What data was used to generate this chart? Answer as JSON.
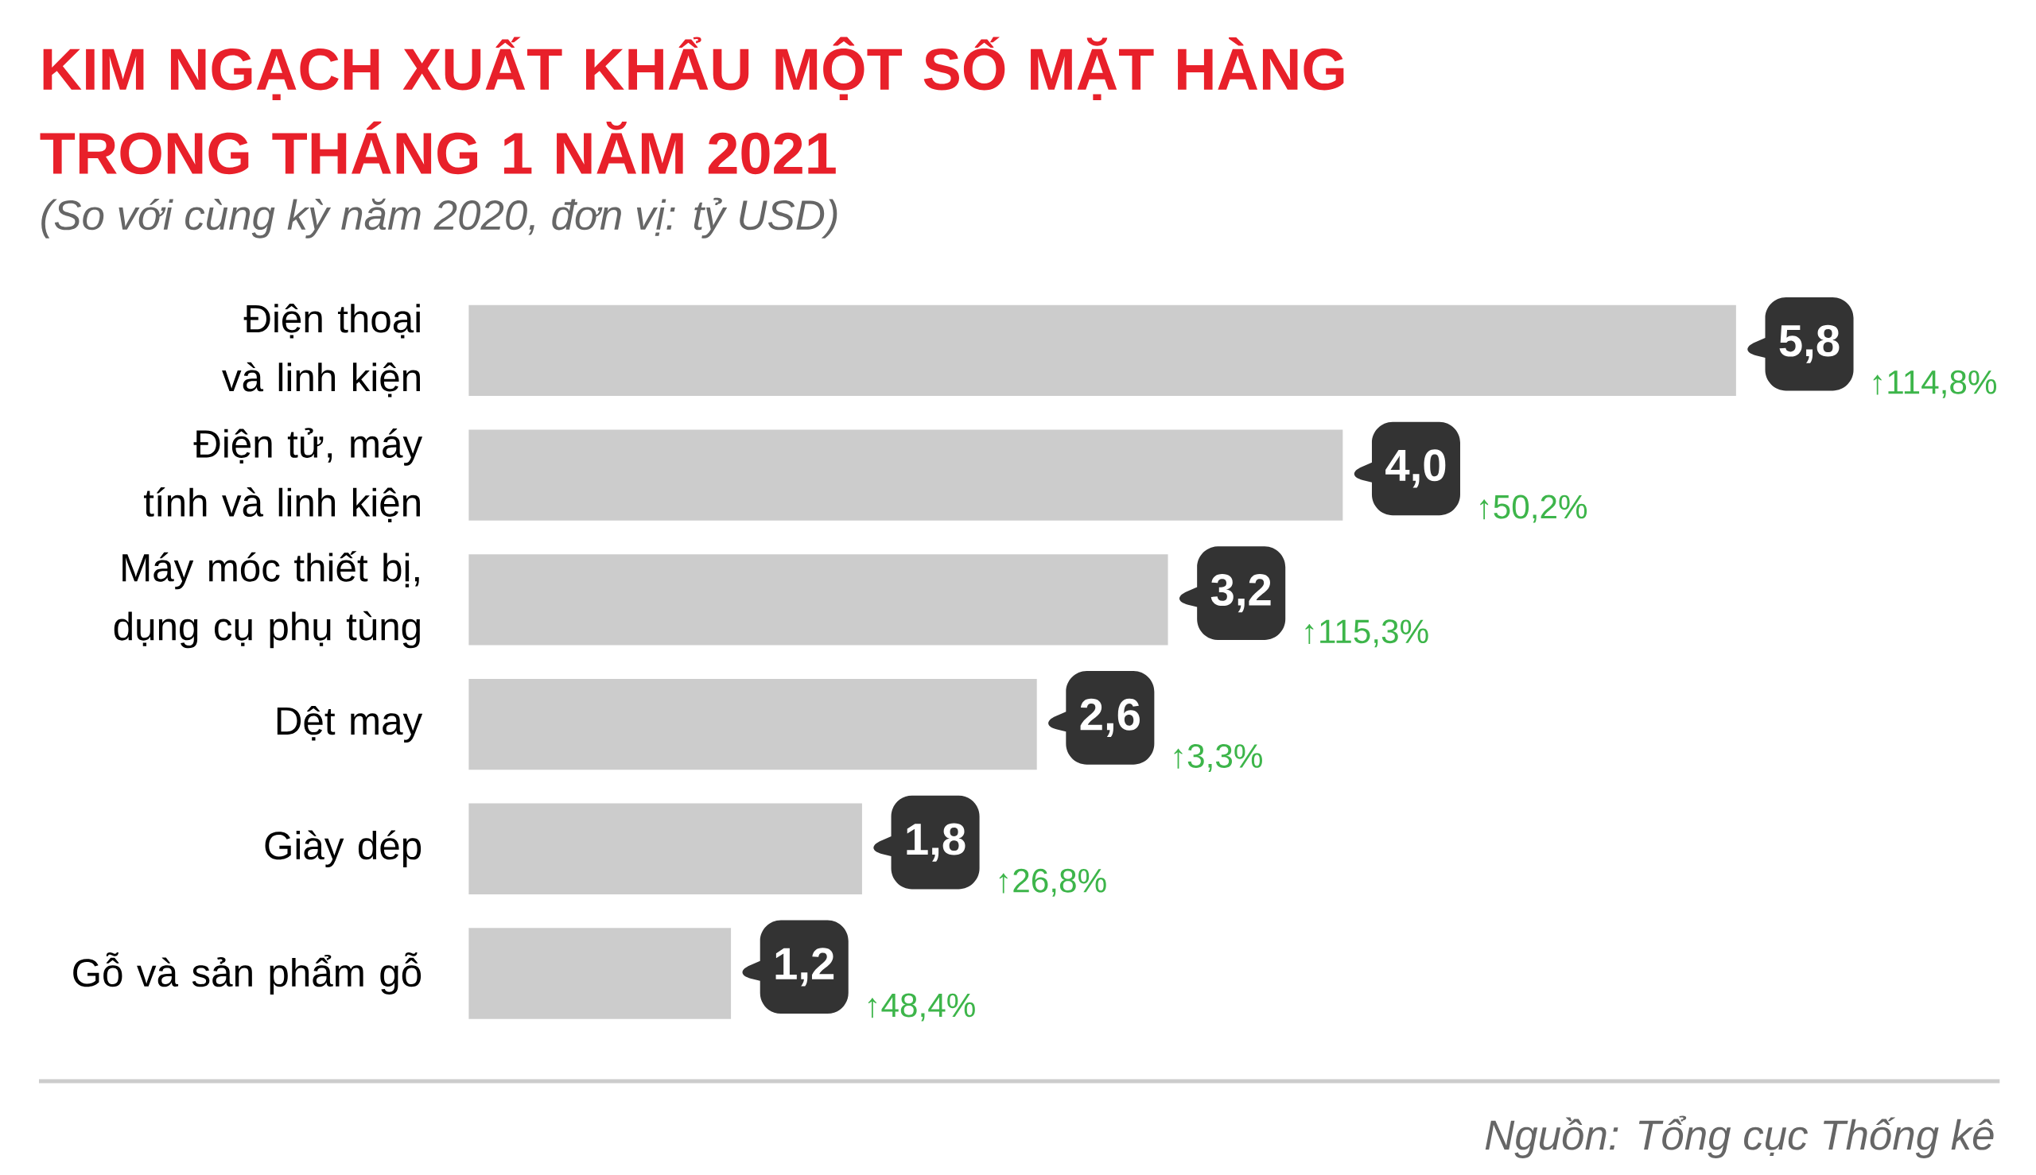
{
  "chart_data": {
    "type": "bar",
    "orientation": "horizontal",
    "title": "KIM NGẠCH XUẤT KHẨU MỘT SỐ MẶT HÀNG TRONG THÁNG 1 NĂM 2021",
    "subtitle": "(So với cùng kỳ năm 2020, đơn vị: tỷ USD)",
    "categories": [
      "Điện thoại và linh kiện",
      "Điện tử, máy tính và linh kiện",
      "Máy móc thiết bị, dụng cụ phụ tùng",
      "Dệt may",
      "Giày dép",
      "Gỗ và sản phẩm gỗ"
    ],
    "values": [
      5.8,
      4.0,
      3.2,
      2.6,
      1.8,
      1.2
    ],
    "value_labels": [
      "5,8",
      "4,0",
      "3,2",
      "2,6",
      "1,8",
      "1,2"
    ],
    "color": "#cccccc",
    "annotations": [
      "↑114,8%",
      "↑50,2%",
      "↑115,3%",
      "↑3,3%",
      "↑26,8%",
      "↑48,4%",
      "Nguồn: Tổng cục Thống kê"
    ]
  }
}
